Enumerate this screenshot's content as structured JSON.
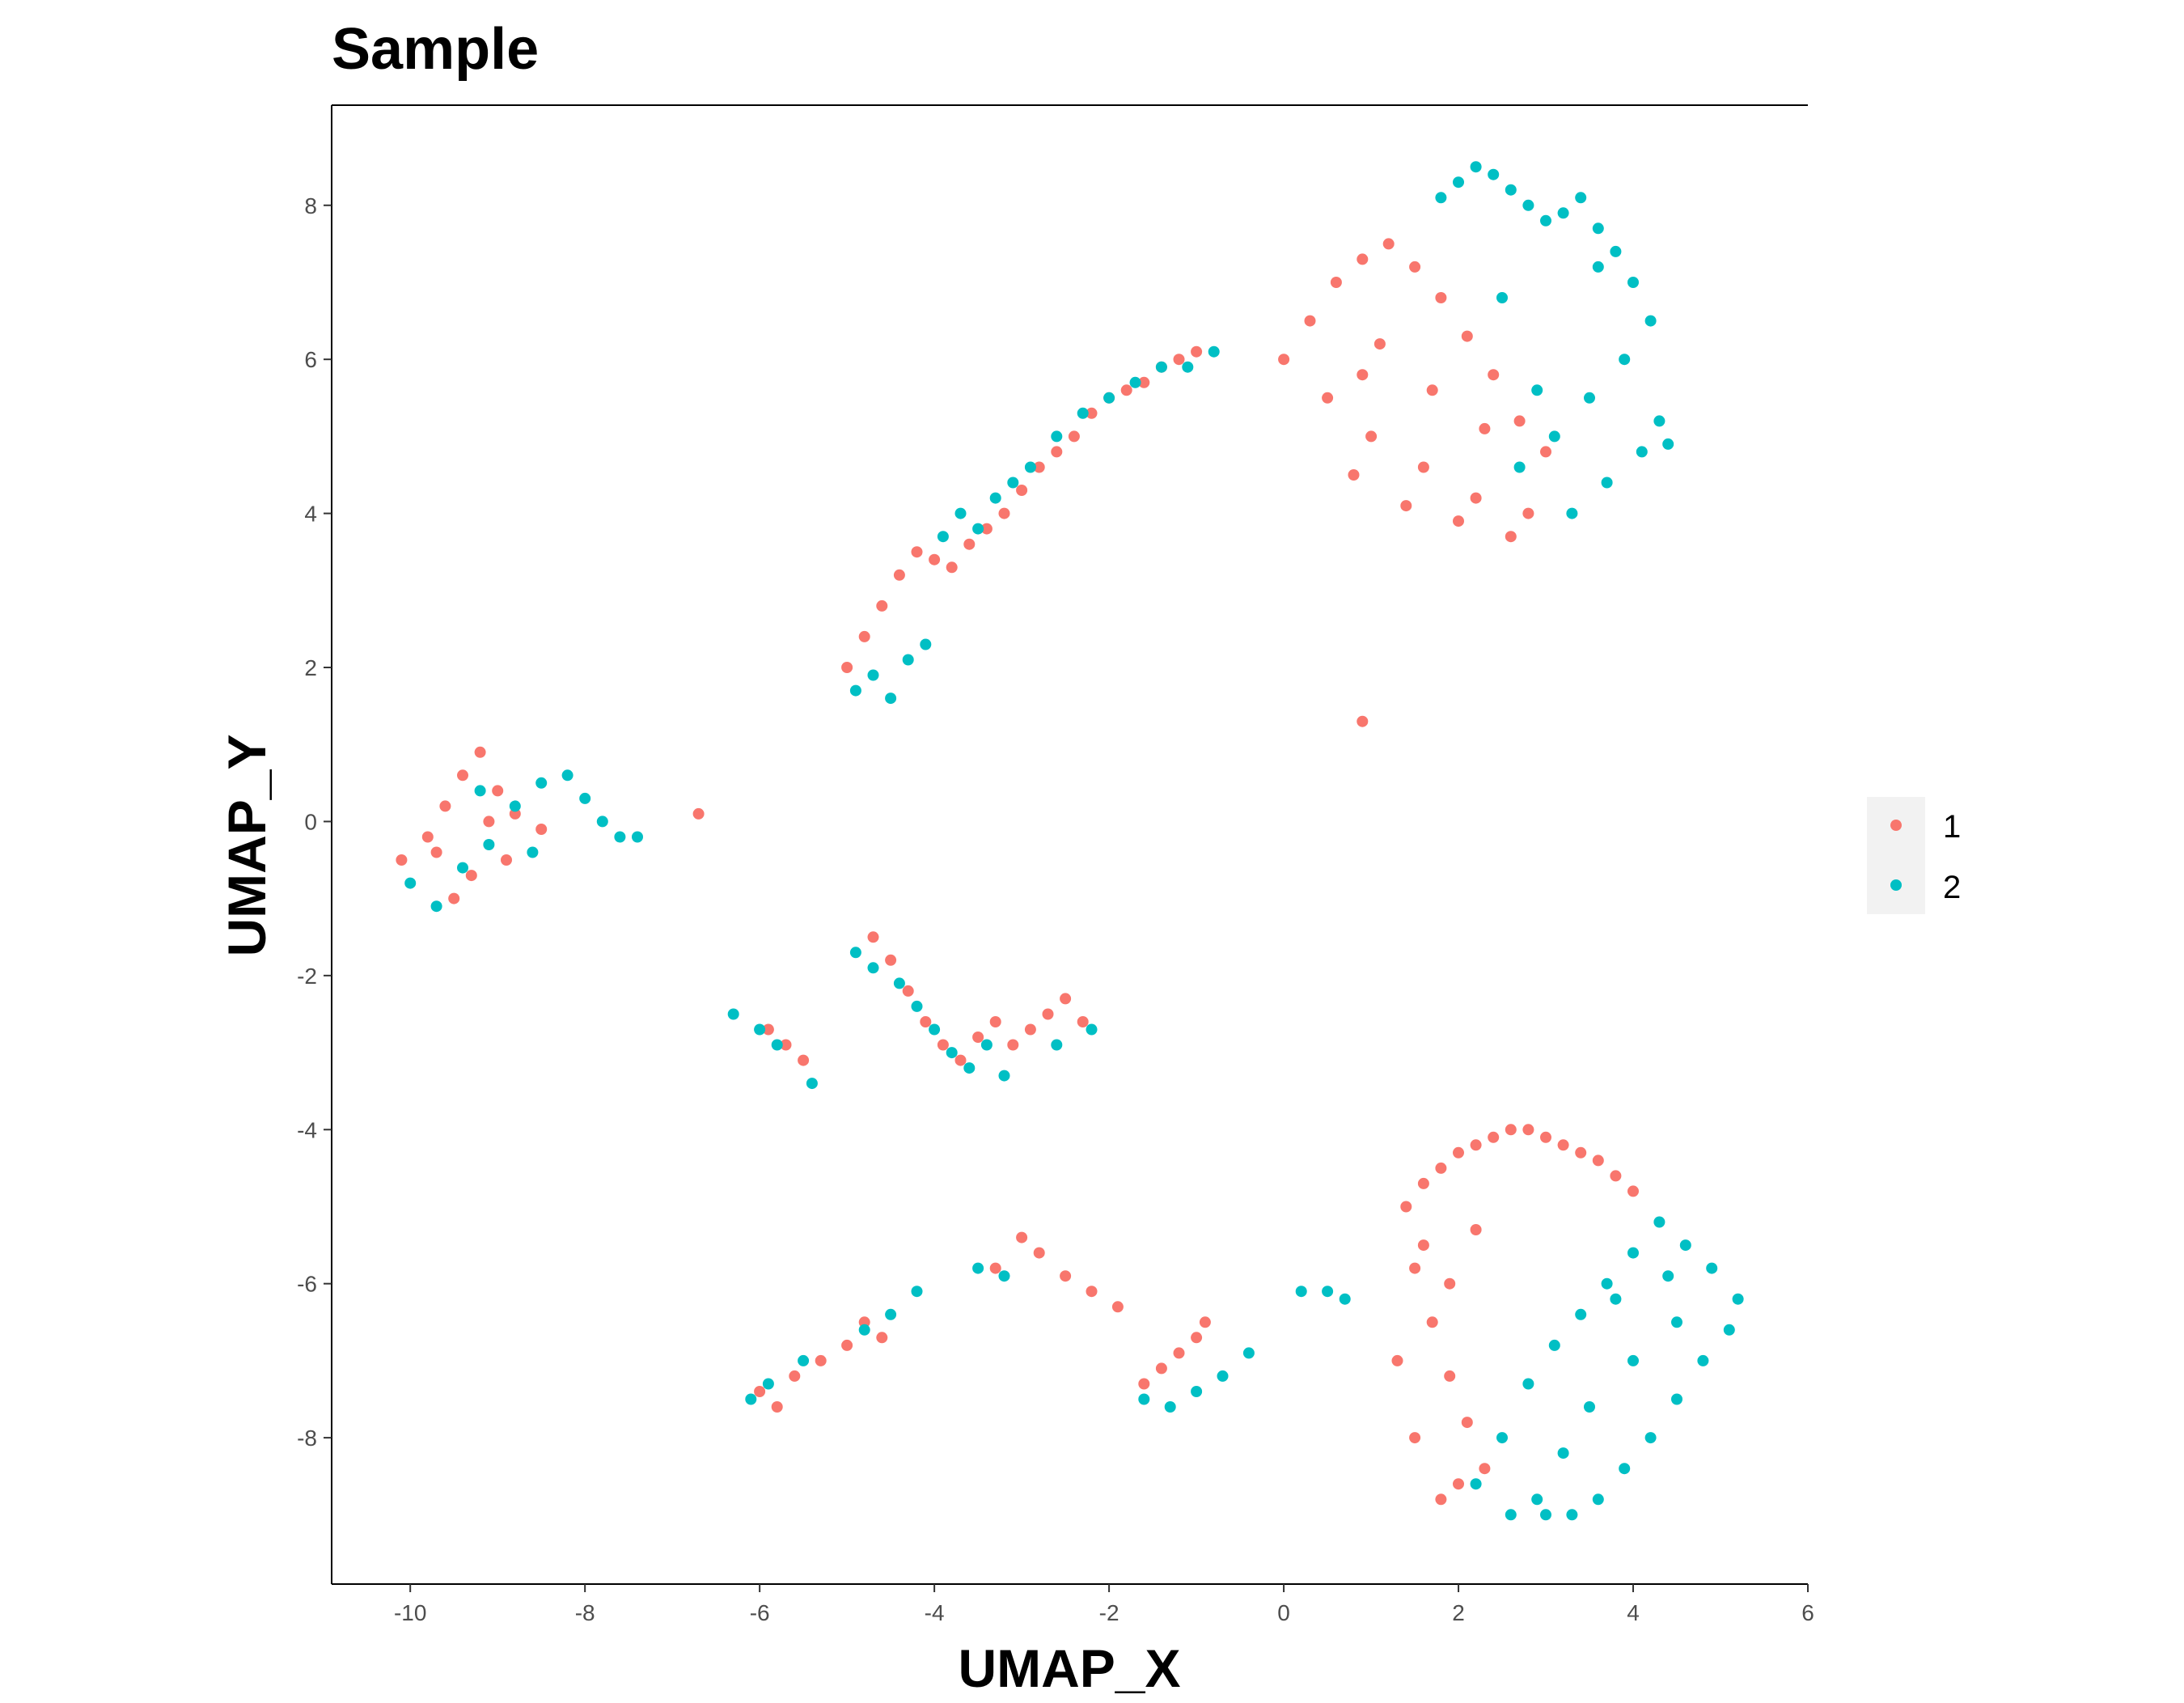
{
  "chart_data": {
    "type": "scatter",
    "title": "Sample",
    "xlabel": "UMAP_X",
    "ylabel": "UMAP_Y",
    "xlim": [
      -10.9,
      6.0
    ],
    "ylim": [
      -9.9,
      9.3
    ],
    "x_ticks": [
      -10,
      -8,
      -6,
      -4,
      -2,
      0,
      2,
      4,
      6
    ],
    "x_tick_labels": [
      "-10",
      "-8",
      "-6",
      "-4",
      "-2",
      "0",
      "2",
      "4",
      "6"
    ],
    "y_ticks": [
      -8,
      -6,
      -4,
      -2,
      0,
      2,
      4,
      6,
      8
    ],
    "y_tick_labels": [
      "-8",
      "-6",
      "-4",
      "-2",
      "0",
      "2",
      "4",
      "6",
      "8"
    ],
    "grid": false,
    "legend_position": "right",
    "colors": {
      "1": "#F8766D",
      "2": "#00BFC4"
    },
    "series": [
      {
        "name": "1",
        "color": "#F8766D",
        "x": [
          -10.1,
          -9.8,
          -9.6,
          -9.4,
          -9.2,
          -9.0,
          -8.8,
          -8.5,
          -9.3,
          -9.5,
          -9.7,
          -9.1,
          -8.9,
          -6.7,
          -5.0,
          -4.8,
          -4.6,
          -4.4,
          -4.2,
          -4.0,
          -3.8,
          -3.6,
          -3.4,
          -3.2,
          -3.0,
          -2.8,
          -2.6,
          -2.4,
          -2.2,
          -2.0,
          -1.8,
          -1.6,
          -1.4,
          -1.2,
          -1.0,
          0.0,
          0.3,
          0.6,
          0.9,
          1.2,
          1.5,
          1.8,
          2.1,
          2.4,
          2.7,
          3.0,
          0.5,
          1.0,
          1.6,
          2.2,
          2.8,
          0.8,
          1.4,
          2.0,
          2.6,
          1.1,
          1.7,
          2.3,
          0.9,
          -4.7,
          -4.5,
          -4.3,
          -4.1,
          -3.9,
          -3.7,
          -3.5,
          -3.3,
          -3.1,
          -2.9,
          -2.7,
          -2.5,
          -2.3,
          -5.9,
          -5.7,
          -5.5,
          -6.0,
          -5.8,
          -5.6,
          -5.3,
          -5.0,
          -4.8,
          -4.6,
          -3.3,
          -3.0,
          -2.8,
          -2.5,
          -2.2,
          -1.9,
          -1.6,
          -1.4,
          -1.2,
          -1.0,
          -0.9,
          1.4,
          1.6,
          1.8,
          2.0,
          2.2,
          2.4,
          2.6,
          2.8,
          3.0,
          3.2,
          3.4,
          3.6,
          3.8,
          4.0,
          1.5,
          1.7,
          1.9,
          2.1,
          2.3,
          1.3,
          1.5,
          1.8,
          2.0,
          1.6,
          1.9,
          2.2,
          0.9
        ],
        "y": [
          -0.5,
          -0.2,
          0.2,
          0.6,
          0.9,
          0.4,
          0.1,
          -0.1,
          -0.7,
          -1.0,
          -0.4,
          0.0,
          -0.5,
          0.1,
          2.0,
          2.4,
          2.8,
          3.2,
          3.5,
          3.4,
          3.3,
          3.6,
          3.8,
          4.0,
          4.3,
          4.6,
          4.8,
          5.0,
          5.3,
          5.5,
          5.6,
          5.7,
          5.9,
          6.0,
          6.1,
          6.0,
          6.5,
          7.0,
          7.3,
          7.5,
          7.2,
          6.8,
          6.3,
          5.8,
          5.2,
          4.8,
          5.5,
          5.0,
          4.6,
          4.2,
          4.0,
          4.5,
          4.1,
          3.9,
          3.7,
          6.2,
          5.6,
          5.1,
          5.8,
          -1.5,
          -1.8,
          -2.2,
          -2.6,
          -2.9,
          -3.1,
          -2.8,
          -2.6,
          -2.9,
          -2.7,
          -2.5,
          -2.3,
          -2.6,
          -2.7,
          -2.9,
          -3.1,
          -7.4,
          -7.6,
          -7.2,
          -7.0,
          -6.8,
          -6.5,
          -6.7,
          -5.8,
          -5.4,
          -5.6,
          -5.9,
          -6.1,
          -6.3,
          -7.3,
          -7.1,
          -6.9,
          -6.7,
          -6.5,
          -5.0,
          -4.7,
          -4.5,
          -4.3,
          -4.2,
          -4.1,
          -4.0,
          -4.0,
          -4.1,
          -4.2,
          -4.3,
          -4.4,
          -4.6,
          -4.8,
          -5.8,
          -6.5,
          -7.2,
          -7.8,
          -8.4,
          -7.0,
          -8.0,
          -8.8,
          -8.6,
          -5.5,
          -6.0,
          -5.3,
          1.3
        ]
      },
      {
        "name": "2",
        "color": "#00BFC4",
        "x": [
          -10.0,
          -9.7,
          -9.4,
          -9.1,
          -8.8,
          -8.5,
          -8.2,
          -8.0,
          -7.8,
          -7.6,
          -7.4,
          -9.2,
          -8.6,
          -4.9,
          -4.7,
          -4.5,
          -4.3,
          -4.1,
          -3.9,
          -3.7,
          -3.5,
          -3.3,
          -3.1,
          -2.9,
          -2.6,
          -2.3,
          -2.0,
          -1.7,
          -1.4,
          -1.1,
          -0.8,
          1.8,
          2.0,
          2.2,
          2.4,
          2.6,
          2.8,
          3.0,
          3.2,
          3.4,
          3.6,
          3.8,
          4.0,
          4.2,
          3.9,
          3.5,
          3.1,
          2.7,
          4.3,
          4.1,
          3.7,
          3.3,
          2.9,
          2.5,
          4.4,
          3.6,
          -6.3,
          -6.0,
          -5.8,
          -4.9,
          -4.7,
          -4.4,
          -4.2,
          -4.0,
          -3.8,
          -3.6,
          -3.4,
          -3.2,
          -2.6,
          -2.2,
          -5.4,
          -6.1,
          -5.9,
          -5.5,
          -4.8,
          -4.5,
          -4.2,
          -3.5,
          -3.2,
          -1.6,
          -1.3,
          -1.0,
          -0.7,
          -0.4,
          0.2,
          0.5,
          0.7,
          3.0,
          3.3,
          3.6,
          3.9,
          4.2,
          4.5,
          4.8,
          5.1,
          5.2,
          4.9,
          4.6,
          4.3,
          4.0,
          3.7,
          3.4,
          3.1,
          2.8,
          2.5,
          2.2,
          3.5,
          4.0,
          4.5,
          3.2,
          2.9,
          3.8,
          4.4,
          2.6
        ],
        "y": [
          -0.8,
          -1.1,
          -0.6,
          -0.3,
          0.2,
          0.5,
          0.6,
          0.3,
          0.0,
          -0.2,
          -0.2,
          0.4,
          -0.4,
          1.7,
          1.9,
          1.6,
          2.1,
          2.3,
          3.7,
          4.0,
          3.8,
          4.2,
          4.4,
          4.6,
          5.0,
          5.3,
          5.5,
          5.7,
          5.9,
          5.9,
          6.1,
          8.1,
          8.3,
          8.5,
          8.4,
          8.2,
          8.0,
          7.8,
          7.9,
          8.1,
          7.7,
          7.4,
          7.0,
          6.5,
          6.0,
          5.5,
          5.0,
          4.6,
          5.2,
          4.8,
          4.4,
          4.0,
          5.6,
          6.8,
          4.9,
          7.2,
          -2.5,
          -2.7,
          -2.9,
          -1.7,
          -1.9,
          -2.1,
          -2.4,
          -2.7,
          -3.0,
          -3.2,
          -2.9,
          -3.3,
          -2.9,
          -2.7,
          -3.4,
          -7.5,
          -7.3,
          -7.0,
          -6.6,
          -6.4,
          -6.1,
          -5.8,
          -5.9,
          -7.5,
          -7.6,
          -7.4,
          -7.2,
          -6.9,
          -6.1,
          -6.1,
          -6.2,
          -9.0,
          -9.0,
          -8.8,
          -8.4,
          -8.0,
          -7.5,
          -7.0,
          -6.6,
          -6.2,
          -5.8,
          -5.5,
          -5.2,
          -5.6,
          -6.0,
          -6.4,
          -6.8,
          -7.3,
          -8.0,
          -8.6,
          -7.6,
          -7.0,
          -6.5,
          -8.2,
          -8.8,
          -6.2,
          -5.9,
          -9.0
        ]
      }
    ]
  }
}
